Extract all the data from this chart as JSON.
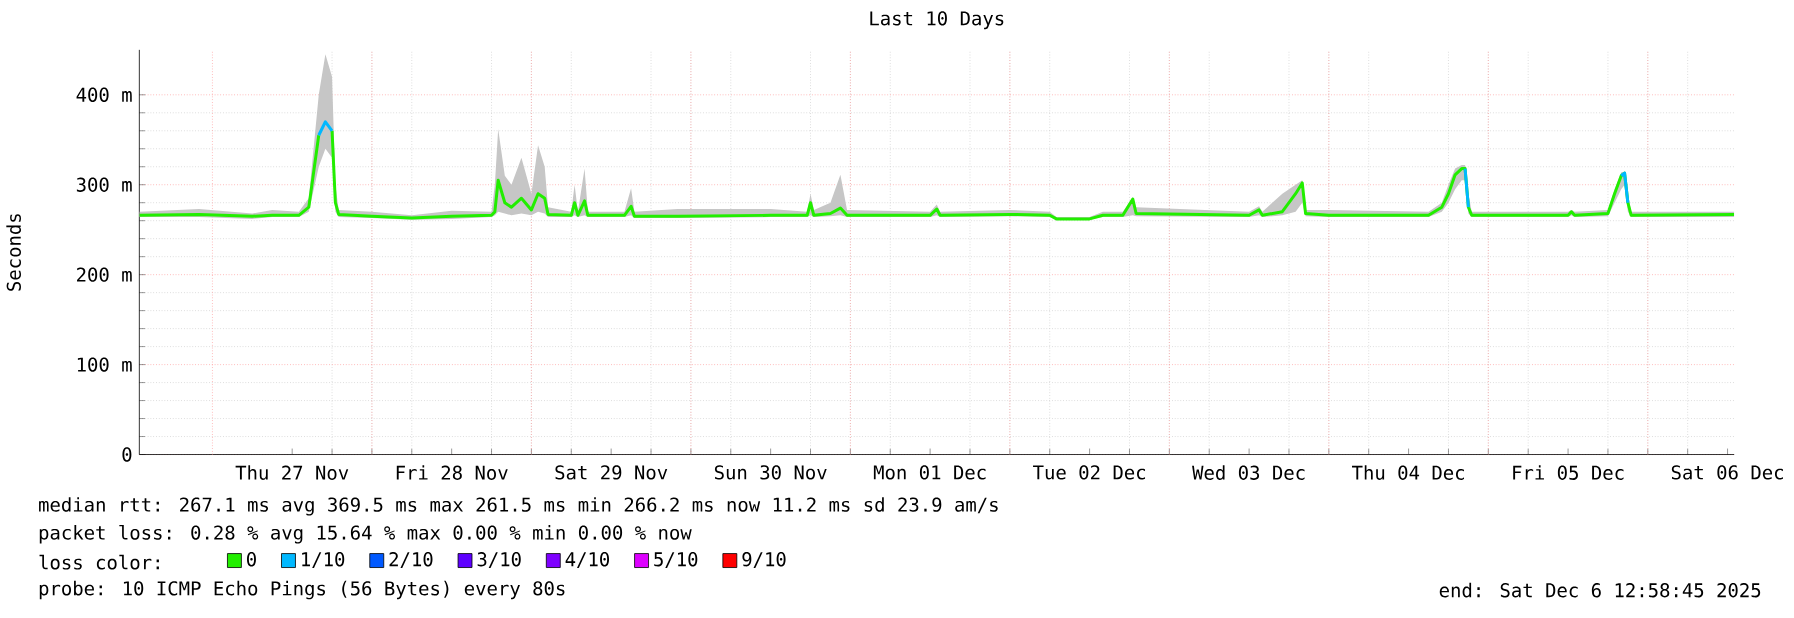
{
  "chart_data": {
    "type": "line",
    "title": "Last 10 Days",
    "ylabel": "Seconds",
    "legend_title": "loss color:",
    "x": [
      "2025-11-26T13:00",
      "2025-11-26T22:00",
      "2025-11-27T06:00",
      "2025-11-27T09:00",
      "2025-11-27T13:00",
      "2025-11-27T14:30",
      "2025-11-27T16:00",
      "2025-11-27T17:00",
      "2025-11-27T18:00",
      "2025-11-27T18:30",
      "2025-11-27T19:00",
      "2025-11-28T00:00",
      "2025-11-28T06:00",
      "2025-11-28T12:00",
      "2025-11-28T18:00",
      "2025-11-28T18:30",
      "2025-11-28T19:00",
      "2025-11-28T20:00",
      "2025-11-28T21:00",
      "2025-11-28T22:30",
      "2025-11-29T00:00",
      "2025-11-29T01:00",
      "2025-11-29T02:00",
      "2025-11-29T02:30",
      "2025-11-29T06:00",
      "2025-11-29T06:30",
      "2025-11-29T07:00",
      "2025-11-29T08:00",
      "2025-11-29T08:30",
      "2025-11-29T14:00",
      "2025-11-29T15:00",
      "2025-11-29T15:30",
      "2025-11-29T22:00",
      "2025-11-30T12:00",
      "2025-11-30T17:30",
      "2025-11-30T18:00",
      "2025-11-30T18:30",
      "2025-11-30T21:00",
      "2025-11-30T22:30",
      "2025-11-30T23:30",
      "2025-12-01T12:00",
      "2025-12-01T13:00",
      "2025-12-01T13:30",
      "2025-12-02T00:00",
      "2025-12-02T06:00",
      "2025-12-02T07:00",
      "2025-12-02T12:00",
      "2025-12-02T14:00",
      "2025-12-02T17:00",
      "2025-12-02T18:30",
      "2025-12-02T19:00",
      "2025-12-03T12:00",
      "2025-12-03T13:30",
      "2025-12-03T14:00",
      "2025-12-03T17:00",
      "2025-12-03T19:00",
      "2025-12-03T20:00",
      "2025-12-03T20:30",
      "2025-12-04T00:00",
      "2025-12-04T15:00",
      "2025-12-04T17:00",
      "2025-12-04T18:00",
      "2025-12-04T19:00",
      "2025-12-04T20:00",
      "2025-12-04T20:30",
      "2025-12-04T21:00",
      "2025-12-04T21:30",
      "2025-12-05T12:00",
      "2025-12-05T12:30",
      "2025-12-05T13:00",
      "2025-12-05T18:00",
      "2025-12-05T19:00",
      "2025-12-05T20:00",
      "2025-12-05T20:30",
      "2025-12-05T21:00",
      "2025-12-05T21:30",
      "2025-12-06T13:00"
    ],
    "series": [
      {
        "name": "0",
        "color": "#22ee00",
        "values": [
          266,
          267,
          265,
          266,
          266,
          275,
          355,
          null,
          360,
          280,
          267,
          265,
          263,
          265,
          266,
          270,
          305,
          280,
          275,
          285,
          272,
          290,
          285,
          267,
          266,
          280,
          266,
          282,
          266,
          266,
          276,
          265,
          265,
          266,
          266,
          280,
          266,
          268,
          274,
          266,
          266,
          273,
          266,
          267,
          266,
          262,
          262,
          266,
          266,
          284,
          268,
          266,
          272,
          266,
          270,
          290,
          302,
          268,
          266,
          266,
          275,
          290,
          311,
          318,
          318,
          275,
          266,
          266,
          270,
          266,
          268,
          290,
          310,
          313,
          280,
          266,
          267
        ],
        "lower": [
          264,
          264,
          262,
          264,
          264,
          270,
          320,
          340,
          330,
          270,
          264,
          263,
          261,
          262,
          264,
          266,
          270,
          268,
          266,
          268,
          266,
          270,
          268,
          264,
          264,
          266,
          264,
          266,
          264,
          264,
          266,
          263,
          263,
          264,
          264,
          266,
          264,
          265,
          266,
          264,
          264,
          266,
          264,
          265,
          264,
          261,
          261,
          264,
          264,
          266,
          265,
          264,
          266,
          264,
          266,
          270,
          280,
          265,
          264,
          264,
          270,
          280,
          295,
          305,
          305,
          268,
          264,
          264,
          266,
          264,
          265,
          280,
          295,
          300,
          270,
          264,
          264
        ],
        "upper": [
          270,
          273,
          268,
          272,
          270,
          285,
          400,
          445,
          420,
          300,
          272,
          270,
          266,
          271,
          270,
          300,
          362,
          310,
          300,
          330,
          290,
          344,
          320,
          275,
          270,
          300,
          270,
          318,
          270,
          270,
          296,
          270,
          273,
          273,
          270,
          290,
          272,
          280,
          311,
          272,
          270,
          278,
          270,
          272,
          270,
          264,
          264,
          270,
          270,
          286,
          275,
          270,
          276,
          270,
          290,
          300,
          305,
          272,
          272,
          270,
          280,
          300,
          318,
          322,
          322,
          290,
          270,
          270,
          272,
          270,
          272,
          295,
          314,
          314,
          290,
          270,
          270
        ]
      },
      {
        "name": "1/10",
        "color": "#00b8ff",
        "values": [
          null,
          null,
          null,
          null,
          null,
          null,
          355,
          370,
          360,
          null,
          null,
          null,
          null,
          null,
          null,
          null,
          null,
          null,
          null,
          null,
          null,
          null,
          null,
          null,
          null,
          null,
          null,
          null,
          null,
          null,
          null,
          null,
          null,
          null,
          null,
          null,
          null,
          null,
          null,
          null,
          null,
          null,
          null,
          null,
          null,
          null,
          null,
          null,
          null,
          null,
          null,
          null,
          null,
          null,
          null,
          null,
          null,
          null,
          null,
          null,
          null,
          null,
          null,
          null,
          318,
          275,
          null,
          null,
          null,
          null,
          null,
          null,
          310,
          313,
          280,
          null,
          null
        ]
      },
      {
        "name": "2/10",
        "color": "#0059ff",
        "values": [
          null,
          null,
          null,
          null,
          null,
          null,
          null,
          null,
          null,
          null,
          null,
          null,
          null,
          null,
          null,
          null,
          null,
          null,
          null,
          null,
          null,
          null,
          null,
          null,
          null,
          null,
          null,
          null,
          null,
          null,
          null,
          null,
          null,
          null,
          null,
          null,
          null,
          null,
          null,
          null,
          null,
          null,
          null,
          null,
          null,
          null,
          null,
          null,
          null,
          null,
          null,
          null,
          null,
          null,
          null,
          null,
          null,
          null,
          null,
          null,
          null,
          null,
          null,
          null,
          null,
          null,
          null,
          null,
          null,
          null,
          null,
          null,
          null,
          null,
          null,
          null,
          null
        ]
      },
      {
        "name": "3/10",
        "color": "#5e00ff",
        "values": [
          null,
          null,
          null,
          null,
          null,
          null,
          null,
          null,
          null,
          null,
          null,
          null,
          null,
          null,
          null,
          null,
          null,
          null,
          null,
          null,
          null,
          null,
          null,
          null,
          null,
          null,
          null,
          null,
          null,
          null,
          null,
          null,
          null,
          null,
          null,
          null,
          null,
          null,
          null,
          null,
          null,
          null,
          null,
          null,
          null,
          null,
          null,
          null,
          null,
          null,
          null,
          null,
          null,
          null,
          null,
          null,
          null,
          null,
          null,
          null,
          null,
          null,
          null,
          null,
          null,
          null,
          null,
          null,
          null,
          null,
          null,
          null,
          null,
          null,
          null,
          null,
          null
        ]
      },
      {
        "name": "4/10",
        "color": "#7e00ff",
        "values": [
          null,
          null,
          null,
          null,
          null,
          null,
          null,
          null,
          null,
          null,
          null,
          null,
          null,
          null,
          null,
          null,
          null,
          null,
          null,
          null,
          null,
          null,
          null,
          null,
          null,
          null,
          null,
          null,
          null,
          null,
          null,
          null,
          null,
          null,
          null,
          null,
          null,
          null,
          null,
          null,
          null,
          null,
          null,
          null,
          null,
          null,
          null,
          null,
          null,
          null,
          null,
          null,
          null,
          null,
          null,
          null,
          null,
          null,
          null,
          null,
          null,
          null,
          null,
          null,
          null,
          null,
          null,
          null,
          null,
          null,
          null,
          null,
          null,
          null,
          null,
          null,
          null
        ]
      },
      {
        "name": "5/10",
        "color": "#dd00ff",
        "values": [
          null,
          null,
          null,
          null,
          null,
          null,
          null,
          null,
          null,
          null,
          null,
          null,
          null,
          null,
          null,
          null,
          null,
          null,
          null,
          null,
          null,
          null,
          null,
          null,
          null,
          null,
          null,
          null,
          null,
          null,
          null,
          null,
          null,
          null,
          null,
          null,
          null,
          null,
          null,
          null,
          null,
          null,
          null,
          null,
          null,
          null,
          null,
          null,
          null,
          null,
          null,
          null,
          null,
          null,
          null,
          null,
          null,
          null,
          null,
          null,
          null,
          null,
          null,
          null,
          null,
          null,
          null,
          null,
          null,
          null,
          null,
          null,
          null,
          null,
          null,
          null,
          null
        ]
      },
      {
        "name": "9/10",
        "color": "#ff0000",
        "values": [
          null,
          null,
          null,
          null,
          null,
          null,
          null,
          null,
          null,
          null,
          null,
          null,
          null,
          null,
          null,
          null,
          null,
          null,
          null,
          null,
          null,
          null,
          null,
          null,
          null,
          null,
          null,
          null,
          null,
          null,
          null,
          null,
          null,
          null,
          null,
          null,
          null,
          null,
          null,
          null,
          null,
          null,
          null,
          null,
          null,
          null,
          null,
          null,
          null,
          null,
          null,
          null,
          null,
          null,
          null,
          null,
          null,
          null,
          null,
          null,
          null,
          null,
          null,
          null,
          null,
          null,
          null,
          null,
          null,
          null,
          null,
          null,
          null,
          null,
          null,
          null,
          null
        ]
      }
    ],
    "xlim": [
      "2025-11-26T13:00",
      "2025-12-06T13:00"
    ],
    "xticks": [
      {
        "value": "2025-11-27T12:00",
        "label": "Thu 27 Nov"
      },
      {
        "value": "2025-11-28T12:00",
        "label": "Fri 28 Nov"
      },
      {
        "value": "2025-11-29T12:00",
        "label": "Sat 29 Nov"
      },
      {
        "value": "2025-11-30T12:00",
        "label": "Sun 30 Nov"
      },
      {
        "value": "2025-12-01T12:00",
        "label": "Mon 01 Dec"
      },
      {
        "value": "2025-12-02T12:00",
        "label": "Tue 02 Dec"
      },
      {
        "value": "2025-12-03T12:00",
        "label": "Wed 03 Dec"
      },
      {
        "value": "2025-12-04T12:00",
        "label": "Thu 04 Dec"
      },
      {
        "value": "2025-12-05T12:00",
        "label": "Fri 05 Dec"
      },
      {
        "value": "2025-12-06T12:00",
        "label": "Sat 06 Dec"
      }
    ],
    "ylim": [
      0,
      450
    ],
    "yticks": [
      0,
      {
        "value": 100,
        "label": "100 m"
      },
      {
        "value": 200,
        "label": "200 m"
      },
      {
        "value": 300,
        "label": "300 m"
      },
      {
        "value": 400,
        "label": "400 m"
      }
    ],
    "grid": true,
    "legend": "bottom",
    "marker": "none",
    "line_style": "solid",
    "annotations": [
      "median rtt:  267.1 ms avg  369.5 ms max  261.5 ms min  266.2 ms now  11.2 ms sd  23.9   am/s",
      "packet loss: 0.28 % avg  15.64 % max  0.00 % min  0.00 % now",
      "probe:       10 ICMP Echo Pings (56 Bytes) every 80s",
      "end: Sat Dec  6 12:58:45 2025"
    ]
  }
}
